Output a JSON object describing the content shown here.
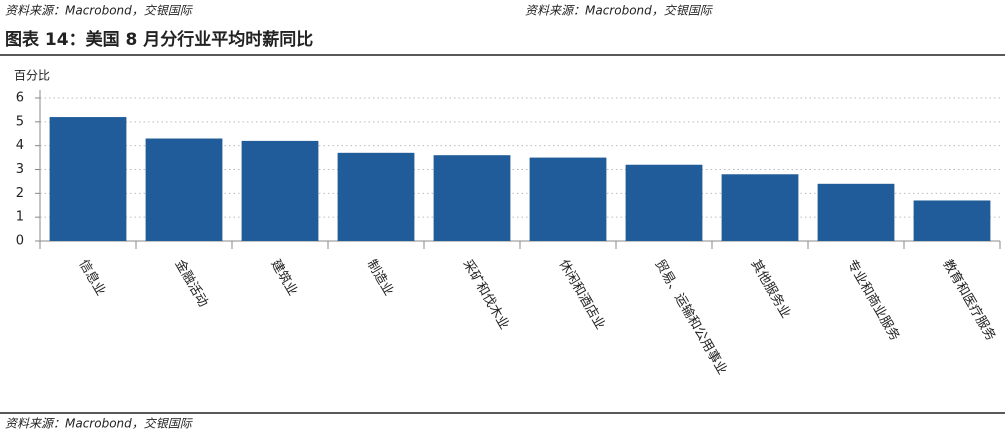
{
  "chart_data": {
    "type": "bar",
    "source": "资料来源：Macrobond，交银国际",
    "title": "图表 14：美国 8 月分行业平均时薪同比",
    "y_label": "百分比",
    "categories": [
      "信息业",
      "金融活动",
      "建筑业",
      "制造业",
      "采矿和伐木业",
      "休闲和酒店业",
      "贸易、运输和公用事业",
      "其他服务业",
      "专业和商业服务",
      "教育和医疗服务"
    ],
    "values": [
      5.2,
      4.3,
      4.2,
      3.7,
      3.6,
      3.5,
      3.2,
      2.8,
      2.4,
      1.7
    ],
    "color": "#1f5c99",
    "ylim": [
      0,
      6
    ],
    "yticks": [
      0,
      1,
      2,
      3,
      4,
      5,
      6
    ],
    "grid": true
  }
}
